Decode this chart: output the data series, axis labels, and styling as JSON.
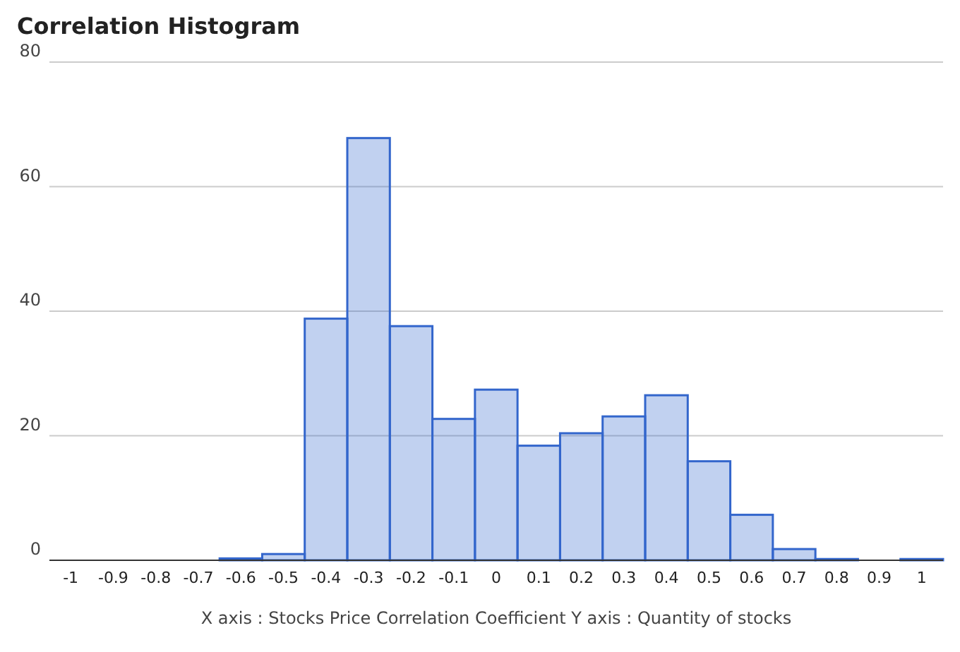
{
  "chart_data": {
    "type": "histogram",
    "title": "Correlation Histogram",
    "xlabel": "X axis : Stocks Price Correlation Coefficient  Y axis : Quantity of stocks",
    "bins": [
      -1.05,
      -0.95,
      -0.85,
      -0.75,
      -0.65,
      -0.55,
      -0.45,
      -0.35,
      -0.25,
      -0.15,
      -0.05,
      0.05,
      0.15,
      0.25,
      0.35,
      0.45,
      0.55,
      0.65,
      0.75,
      0.85,
      0.95,
      1.05
    ],
    "values": [
      0,
      0,
      0,
      0,
      0.3,
      1,
      38.8,
      67.8,
      37.6,
      22.7,
      27.4,
      18.4,
      20.4,
      23.1,
      26.5,
      15.9,
      7.3,
      1.8,
      0.2,
      0,
      0.2
    ],
    "color": "#3366cc",
    "xlim": [
      -1.05,
      1.05
    ],
    "xticks": [
      -1,
      -0.9,
      -0.8,
      -0.7,
      -0.6,
      -0.5,
      -0.4,
      -0.3,
      -0.2,
      -0.1,
      0,
      0.1,
      0.2,
      0.3,
      0.4,
      0.5,
      0.6,
      0.7,
      0.8,
      0.9,
      1
    ],
    "ylim": [
      0,
      80
    ],
    "yticks": [
      0,
      20,
      40,
      60,
      80
    ],
    "grid": "y"
  }
}
